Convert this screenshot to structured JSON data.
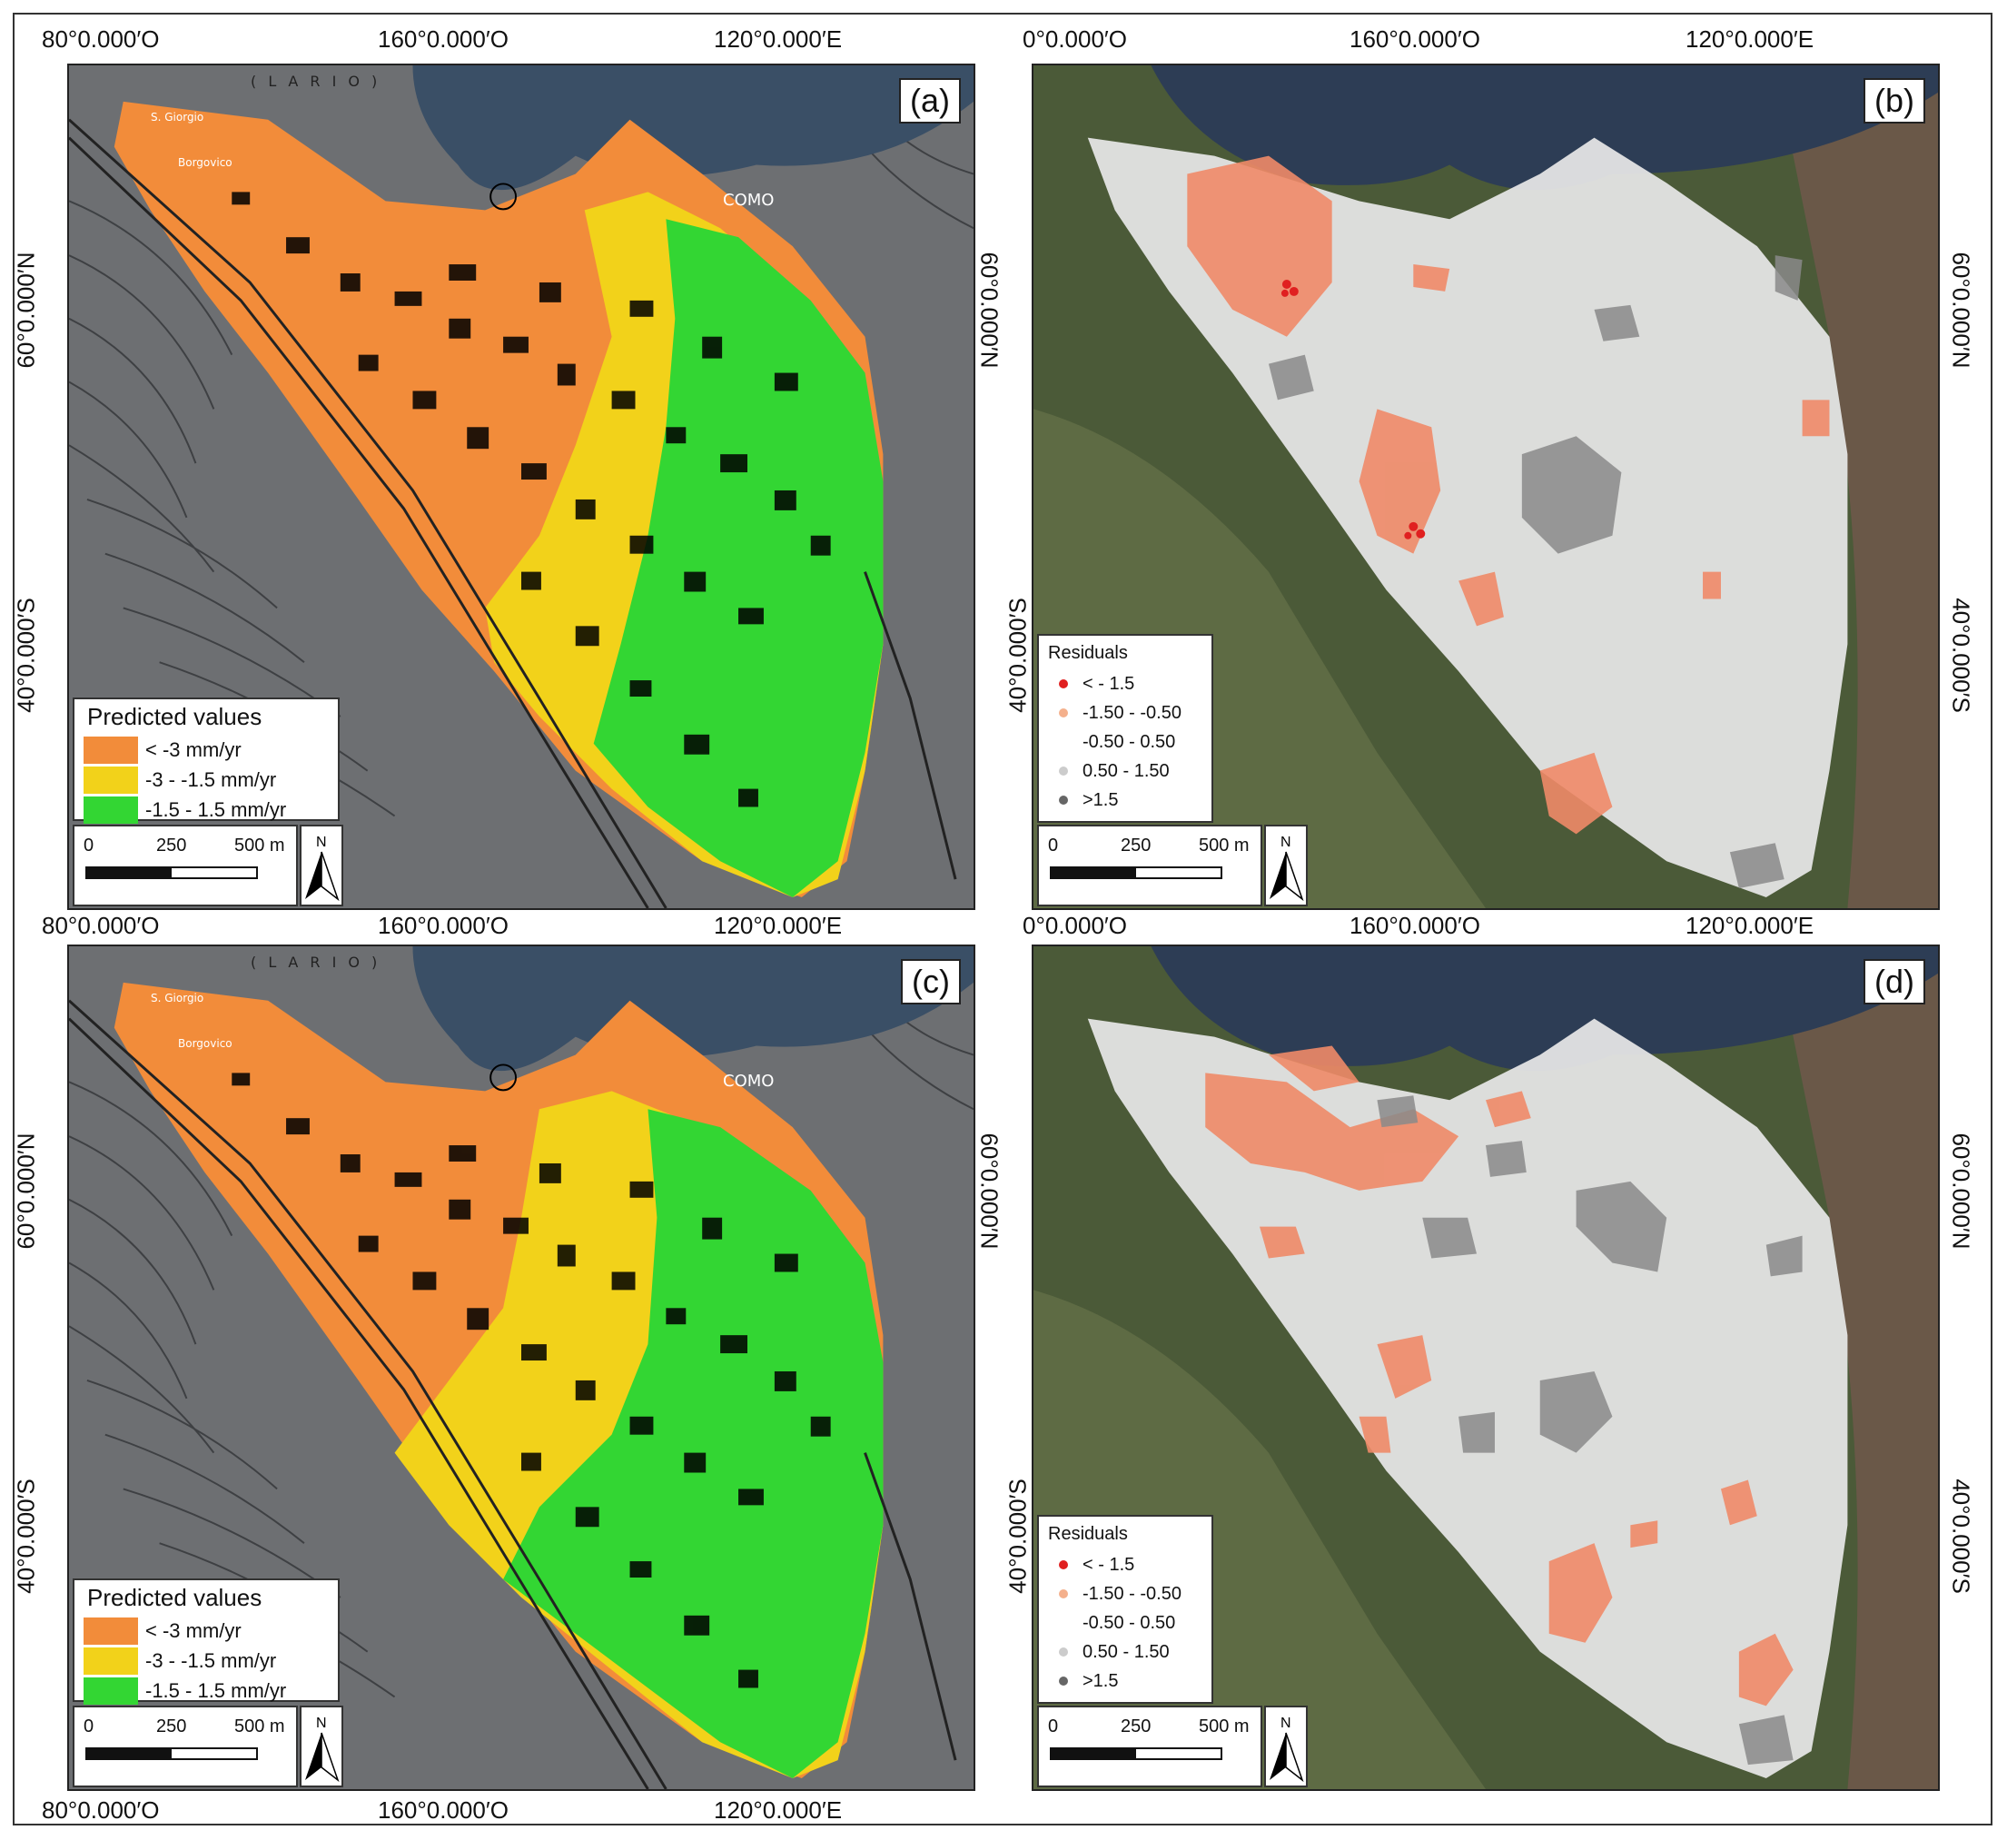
{
  "panels": [
    {
      "label": "(a)",
      "kind": "predicted"
    },
    {
      "label": "(b)",
      "kind": "residuals"
    },
    {
      "label": "(c)",
      "kind": "predicted"
    },
    {
      "label": "(d)",
      "kind": "residuals"
    }
  ],
  "axes": {
    "left_ticks": [
      "80°0.000′O",
      "160°0.000′O",
      "120°0.000′E"
    ],
    "right_ticks_b": [
      "0°0.000′O",
      "160°0.000′O",
      "120°0.000′E"
    ],
    "right_top_ticks_b": [
      "0°0.000′O",
      "160°0.000′O",
      "120°0.000′E"
    ],
    "lat_top": "60°0.000′N",
    "lat_bottom": "40°0.000′S"
  },
  "map_labels": {
    "lake": "( L A R I O )",
    "city": "COMO",
    "places": [
      "S. Giorgio",
      "Borgovico"
    ]
  },
  "predicted_legend": {
    "title": "Predicted values",
    "items": [
      {
        "label": "< -3 mm/yr",
        "color": "#f28c3a"
      },
      {
        "label": "-3 - -1.5 mm/yr",
        "color": "#f2d21a"
      },
      {
        "label": "-1.5 - 1.5 mm/yr",
        "color": "#33d633"
      }
    ]
  },
  "residuals_legend": {
    "title": "Residuals",
    "items": [
      {
        "label": "< - 1.5",
        "color": "#e02020"
      },
      {
        "label": "-1.50 - -0.50",
        "color": "#f4b08c"
      },
      {
        "label": "-0.50 - 0.50",
        "color": "#ffffff"
      },
      {
        "label": "0.50 - 1.50",
        "color": "#cccccc"
      },
      {
        "label": ">1.5",
        "color": "#666666"
      }
    ]
  },
  "scalebar": {
    "labels": [
      "0",
      "250",
      "500 m"
    ]
  },
  "north": "N"
}
